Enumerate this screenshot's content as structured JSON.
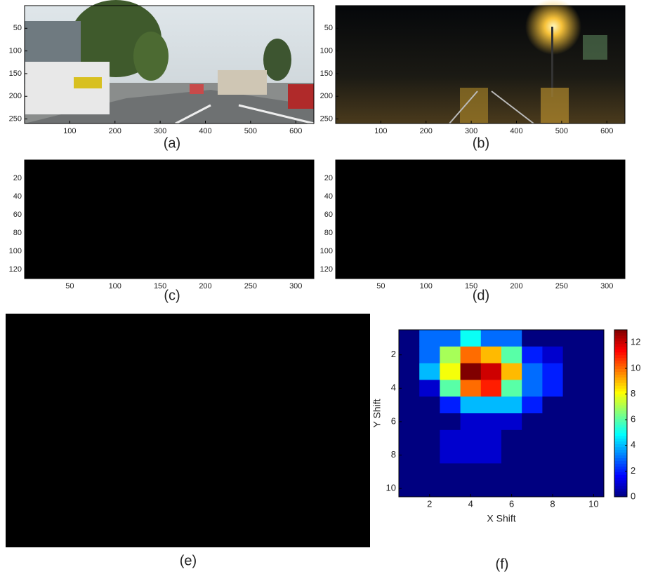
{
  "panels": [
    {
      "label": "(a)",
      "xlim": [
        0,
        640
      ],
      "ylim": [
        0,
        260
      ],
      "xticks": [
        100,
        200,
        300,
        400,
        500,
        600
      ],
      "yticks": [
        50,
        100,
        150,
        200,
        250
      ]
    },
    {
      "label": "(b)",
      "xlim": [
        0,
        640
      ],
      "ylim": [
        0,
        260
      ],
      "xticks": [
        100,
        200,
        300,
        400,
        500,
        600
      ],
      "yticks": [
        50,
        100,
        150,
        200,
        250
      ]
    },
    {
      "label": "(c)",
      "xlim": [
        0,
        320
      ],
      "ylim": [
        0,
        130
      ],
      "xticks": [
        50,
        100,
        150,
        200,
        250,
        300
      ],
      "yticks": [
        20,
        40,
        60,
        80,
        100,
        120
      ]
    },
    {
      "label": "(d)",
      "xlim": [
        0,
        320
      ],
      "ylim": [
        0,
        130
      ],
      "xticks": [
        50,
        100,
        150,
        200,
        250,
        300
      ],
      "yticks": [
        20,
        40,
        60,
        80,
        100,
        120
      ]
    },
    {
      "label": "(e)"
    },
    {
      "label": "(f)",
      "type": "heatmap",
      "x_label": "X Shift",
      "y_label": "Y Shift",
      "xlim": [
        0.5,
        10.5
      ],
      "ylim": [
        0.5,
        10.5
      ],
      "xticks": [
        2,
        4,
        6,
        8,
        10
      ],
      "yticks": [
        2,
        4,
        6,
        8,
        10
      ],
      "clim": [
        0,
        13
      ],
      "colorbar_ticks": [
        0,
        2,
        4,
        6,
        8,
        10,
        12
      ],
      "values": [
        [
          0,
          3,
          3,
          5,
          3,
          3,
          0,
          0,
          0,
          0
        ],
        [
          0,
          3,
          7,
          10,
          9,
          6,
          2,
          1,
          0,
          0
        ],
        [
          0,
          4,
          8,
          13,
          12,
          9,
          3,
          2,
          0,
          0
        ],
        [
          0,
          1,
          6,
          10,
          11,
          6,
          3,
          2,
          0,
          0
        ],
        [
          0,
          0,
          2,
          4,
          4,
          4,
          2,
          0,
          0,
          0
        ],
        [
          0,
          0,
          0,
          1,
          1,
          1,
          0,
          0,
          0,
          0
        ],
        [
          0,
          0,
          1,
          1,
          1,
          0,
          0,
          0,
          0,
          0
        ],
        [
          0,
          0,
          1,
          1,
          1,
          0,
          0,
          0,
          0,
          0
        ],
        [
          0,
          0,
          0,
          0,
          0,
          0,
          0,
          0,
          0,
          0
        ],
        [
          0,
          0,
          0,
          0,
          0,
          0,
          0,
          0,
          0,
          0
        ]
      ]
    }
  ]
}
